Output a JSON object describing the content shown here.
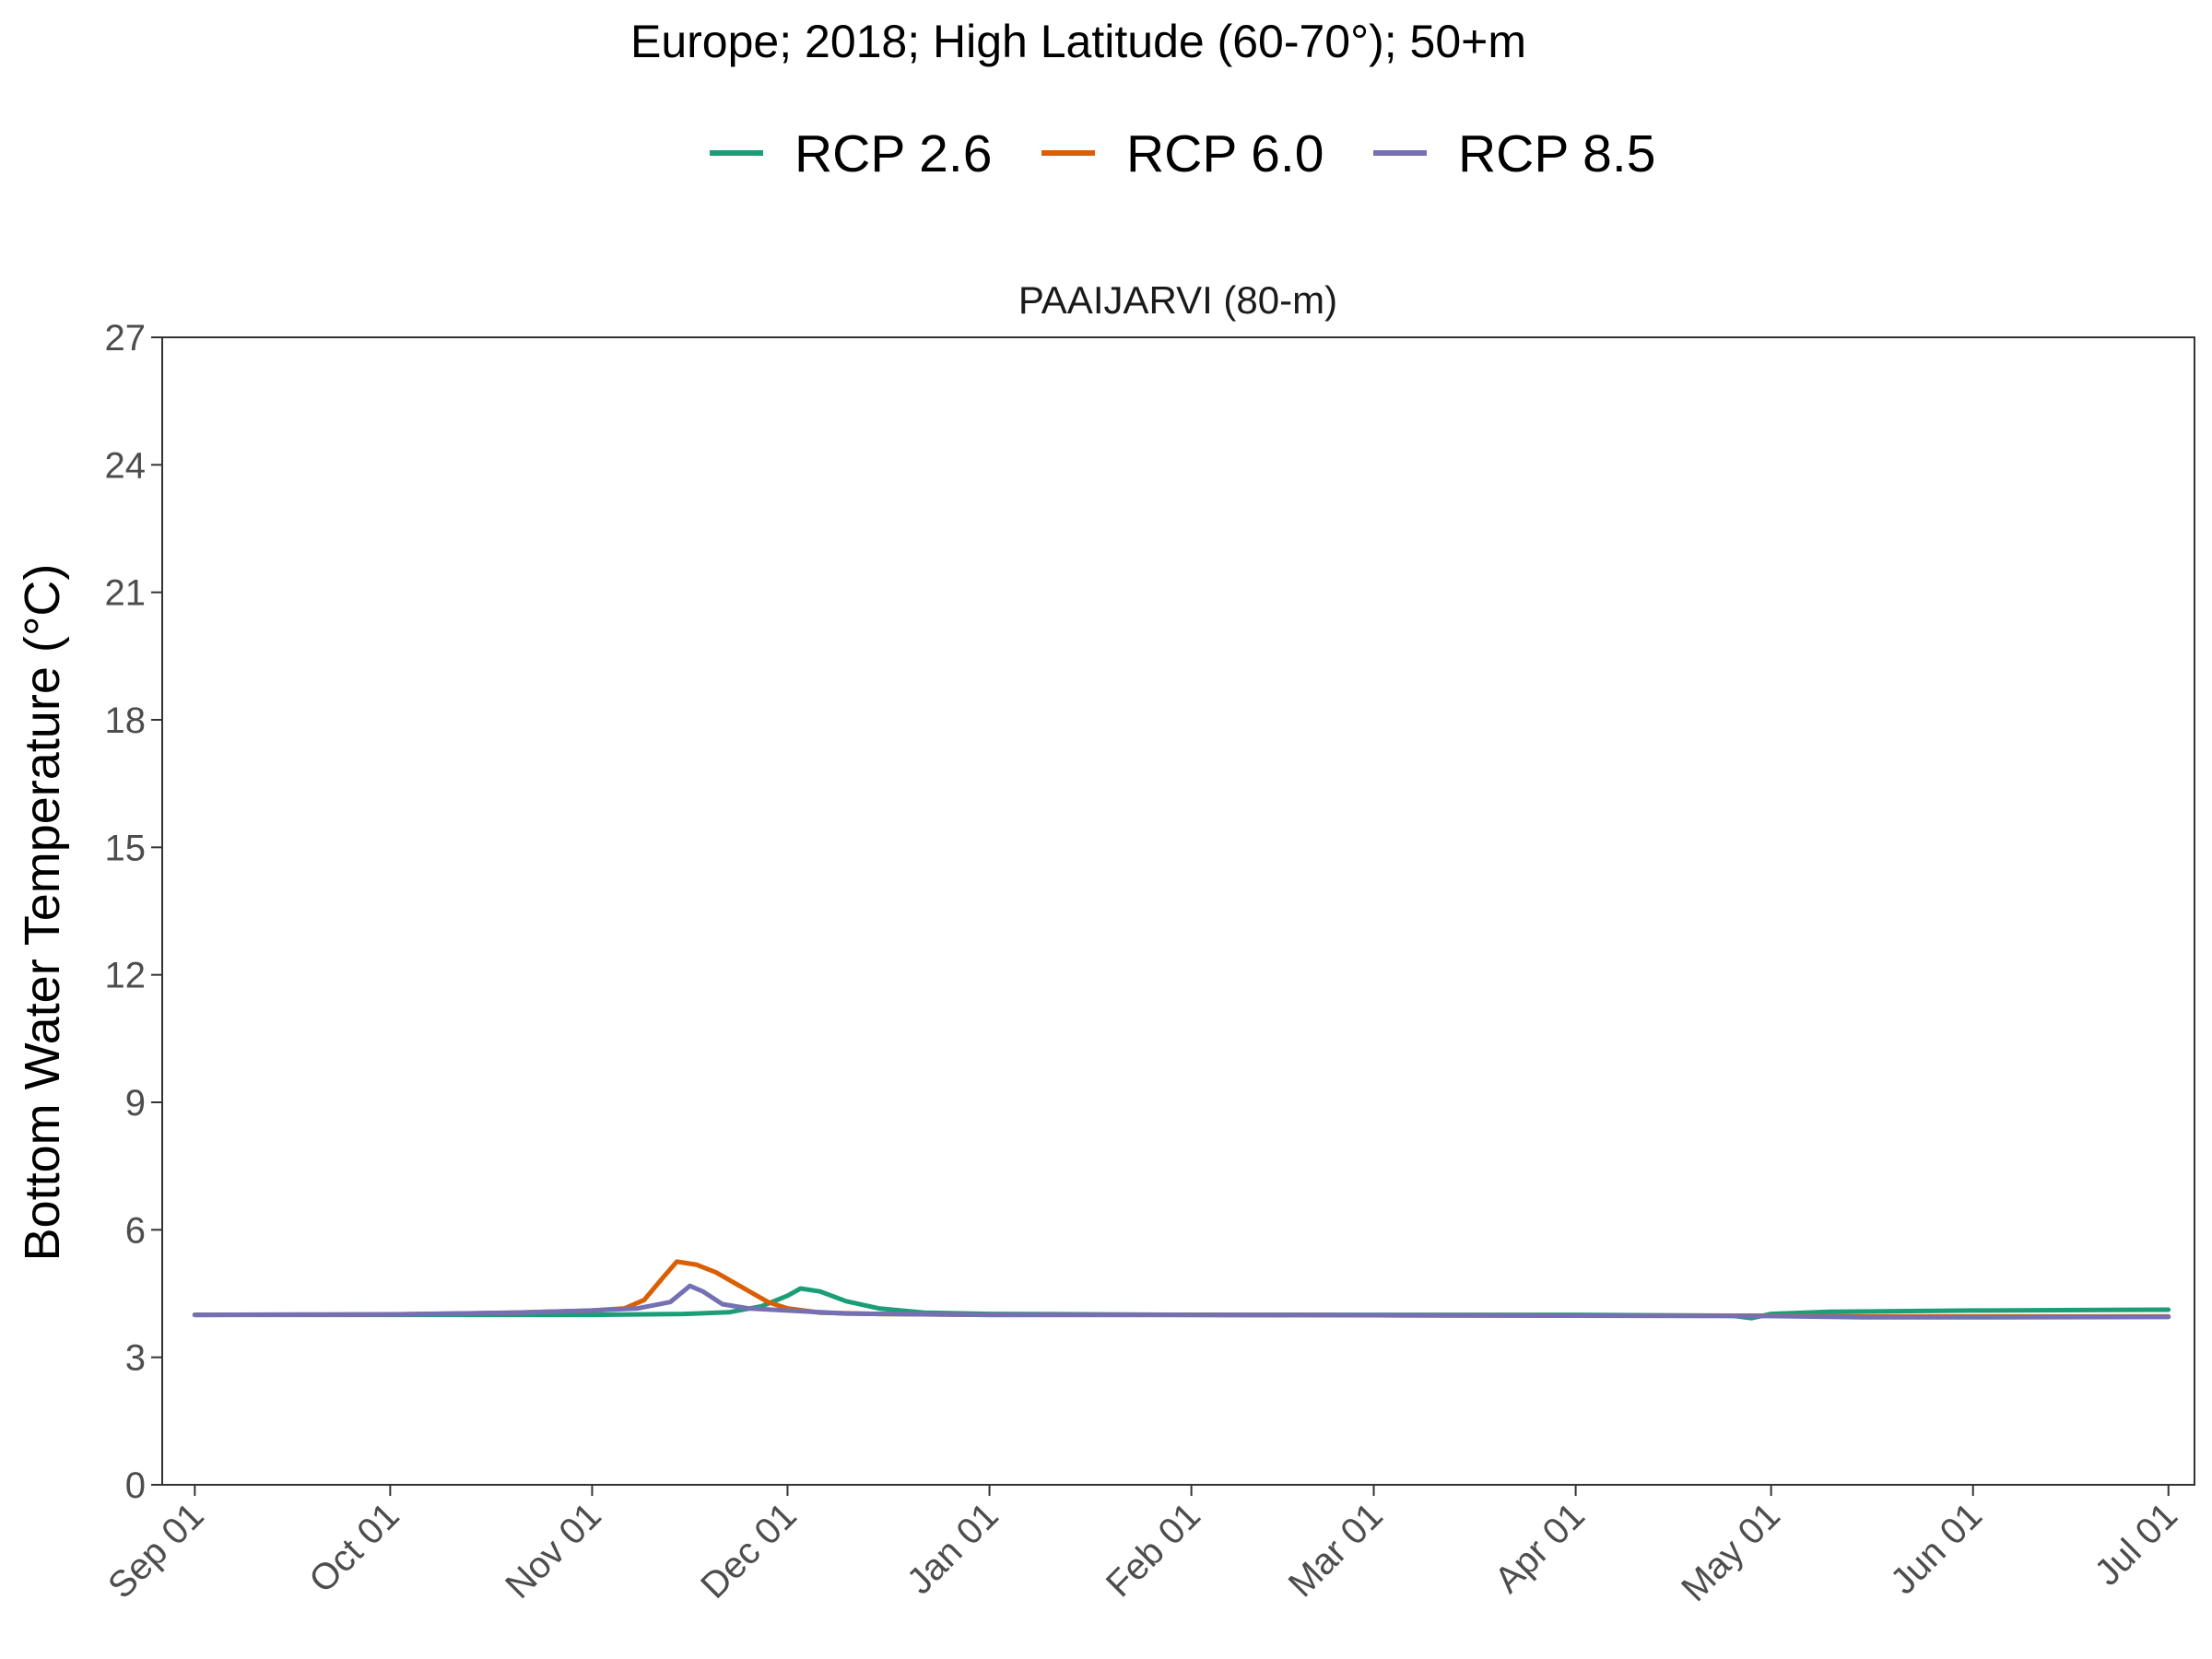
{
  "chart_data": {
    "type": "line",
    "title": "Europe;  2018;  High Latitude (60-70°);  50+m",
    "facet_label": "PAAIJARVI (80-m)",
    "ylabel": "Bottom Water Temperature (°C)",
    "xlabel": "",
    "ylim": [
      0,
      27
    ],
    "yticks": [
      0,
      3,
      6,
      9,
      12,
      15,
      18,
      21,
      24,
      27
    ],
    "xlim": [
      "2018-08-27",
      "2019-07-05"
    ],
    "xticks": [
      {
        "date": "2018-09-01",
        "label": "Sep 01"
      },
      {
        "date": "2018-10-01",
        "label": "Oct 01"
      },
      {
        "date": "2018-11-01",
        "label": "Nov 01"
      },
      {
        "date": "2018-12-01",
        "label": "Dec 01"
      },
      {
        "date": "2019-01-01",
        "label": "Jan 01"
      },
      {
        "date": "2019-02-01",
        "label": "Feb 01"
      },
      {
        "date": "2019-03-01",
        "label": "Mar 01"
      },
      {
        "date": "2019-04-01",
        "label": "Apr 01"
      },
      {
        "date": "2019-05-01",
        "label": "May 01"
      },
      {
        "date": "2019-06-01",
        "label": "Jun 01"
      },
      {
        "date": "2019-07-01",
        "label": "Jul 01"
      }
    ],
    "grid": false,
    "legend_position": "top",
    "series": [
      {
        "name": "RCP 2.6",
        "color": "#1b9e77",
        "points": [
          [
            "2018-09-01",
            4.0
          ],
          [
            "2018-10-01",
            4.0
          ],
          [
            "2018-11-01",
            4.0
          ],
          [
            "2018-11-15",
            4.02
          ],
          [
            "2018-11-22",
            4.06
          ],
          [
            "2018-11-27",
            4.2
          ],
          [
            "2018-12-01",
            4.45
          ],
          [
            "2018-12-03",
            4.62
          ],
          [
            "2018-12-06",
            4.55
          ],
          [
            "2018-12-10",
            4.32
          ],
          [
            "2018-12-15",
            4.15
          ],
          [
            "2018-12-22",
            4.05
          ],
          [
            "2019-01-01",
            4.02
          ],
          [
            "2019-02-01",
            4.0
          ],
          [
            "2019-03-01",
            4.0
          ],
          [
            "2019-04-01",
            4.0
          ],
          [
            "2019-04-25",
            3.98
          ],
          [
            "2019-04-28",
            3.92
          ],
          [
            "2019-05-01",
            4.02
          ],
          [
            "2019-05-10",
            4.07
          ],
          [
            "2019-06-01",
            4.1
          ],
          [
            "2019-07-01",
            4.12
          ]
        ]
      },
      {
        "name": "RCP 6.0",
        "color": "#d95f02",
        "points": [
          [
            "2018-09-01",
            4.0
          ],
          [
            "2018-10-01",
            4.01
          ],
          [
            "2018-10-20",
            4.05
          ],
          [
            "2018-11-01",
            4.1
          ],
          [
            "2018-11-06",
            4.15
          ],
          [
            "2018-11-09",
            4.35
          ],
          [
            "2018-11-12",
            4.9
          ],
          [
            "2018-11-14",
            5.25
          ],
          [
            "2018-11-17",
            5.18
          ],
          [
            "2018-11-20",
            5.0
          ],
          [
            "2018-11-24",
            4.65
          ],
          [
            "2018-11-28",
            4.3
          ],
          [
            "2018-12-01",
            4.15
          ],
          [
            "2018-12-06",
            4.05
          ],
          [
            "2018-12-15",
            4.02
          ],
          [
            "2019-01-01",
            4.0
          ],
          [
            "2019-02-01",
            4.0
          ],
          [
            "2019-03-01",
            3.99
          ],
          [
            "2019-04-01",
            3.98
          ],
          [
            "2019-05-01",
            3.98
          ],
          [
            "2019-05-15",
            3.96
          ],
          [
            "2019-06-01",
            3.96
          ],
          [
            "2019-07-01",
            3.96
          ]
        ]
      },
      {
        "name": "RCP 8.5",
        "color": "#7570b3",
        "points": [
          [
            "2018-09-01",
            4.0
          ],
          [
            "2018-10-01",
            4.01
          ],
          [
            "2018-10-20",
            4.05
          ],
          [
            "2018-11-01",
            4.1
          ],
          [
            "2018-11-08",
            4.15
          ],
          [
            "2018-11-13",
            4.3
          ],
          [
            "2018-11-16",
            4.68
          ],
          [
            "2018-11-18",
            4.55
          ],
          [
            "2018-11-21",
            4.25
          ],
          [
            "2018-11-25",
            4.15
          ],
          [
            "2018-12-01",
            4.1
          ],
          [
            "2018-12-10",
            4.03
          ],
          [
            "2019-01-01",
            4.0
          ],
          [
            "2019-02-01",
            4.0
          ],
          [
            "2019-03-01",
            3.99
          ],
          [
            "2019-04-01",
            3.98
          ],
          [
            "2019-05-01",
            3.97
          ],
          [
            "2019-05-15",
            3.94
          ],
          [
            "2019-06-01",
            3.94
          ],
          [
            "2019-07-01",
            3.95
          ]
        ]
      }
    ]
  }
}
